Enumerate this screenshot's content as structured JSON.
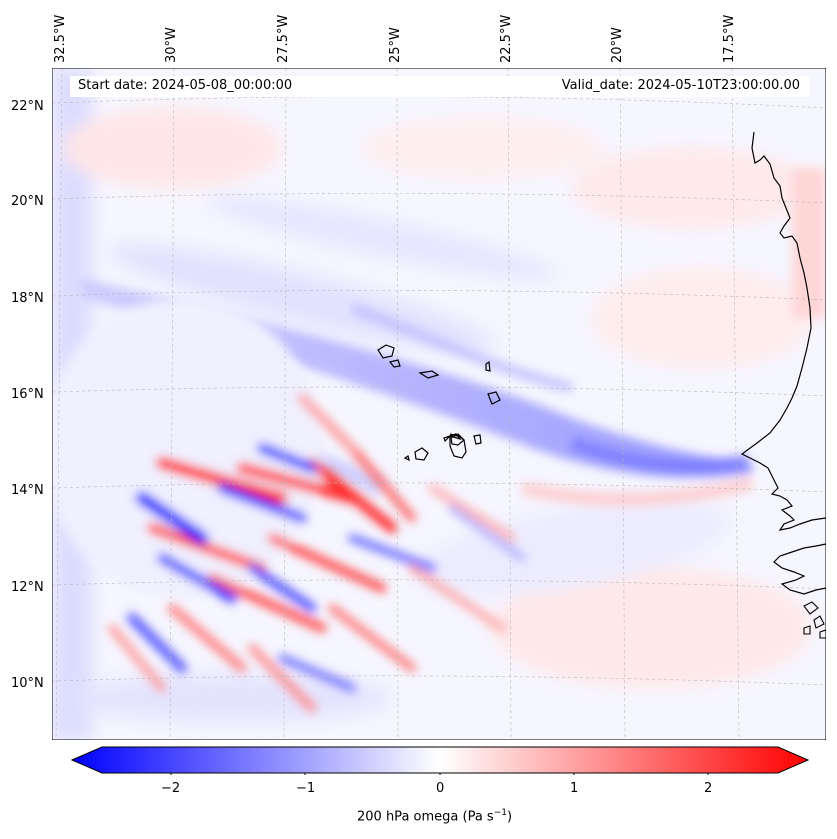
{
  "map": {
    "lon_labels": [
      "32.5°W",
      "30°W",
      "27.5°W",
      "25°W",
      "22.5°W",
      "20°W",
      "17.5°W"
    ],
    "lat_labels": [
      "22°N",
      "20°N",
      "18°N",
      "16°N",
      "14°N",
      "12°N",
      "10°N"
    ],
    "start_date": "Start date: 2024-05-08_00:00:00",
    "valid_date": "Valid_date: 2024-05-10T23:00:00.00",
    "field": "200 hPa omega",
    "colormap": "bwr",
    "colors": {
      "negative": "#0000ff",
      "zero": "#ffffff",
      "positive": "#ff0000",
      "coastline": "#000000",
      "grid": "#b0b0b0"
    }
  },
  "colorbar": {
    "label_main": "200 hPa omega (Pa s",
    "label_sup": "−1",
    "label_close": ")",
    "ticks": [
      "−2",
      "−1",
      "0",
      "1",
      "2"
    ],
    "range": [
      -2.75,
      2.75
    ],
    "extend": "both"
  }
}
